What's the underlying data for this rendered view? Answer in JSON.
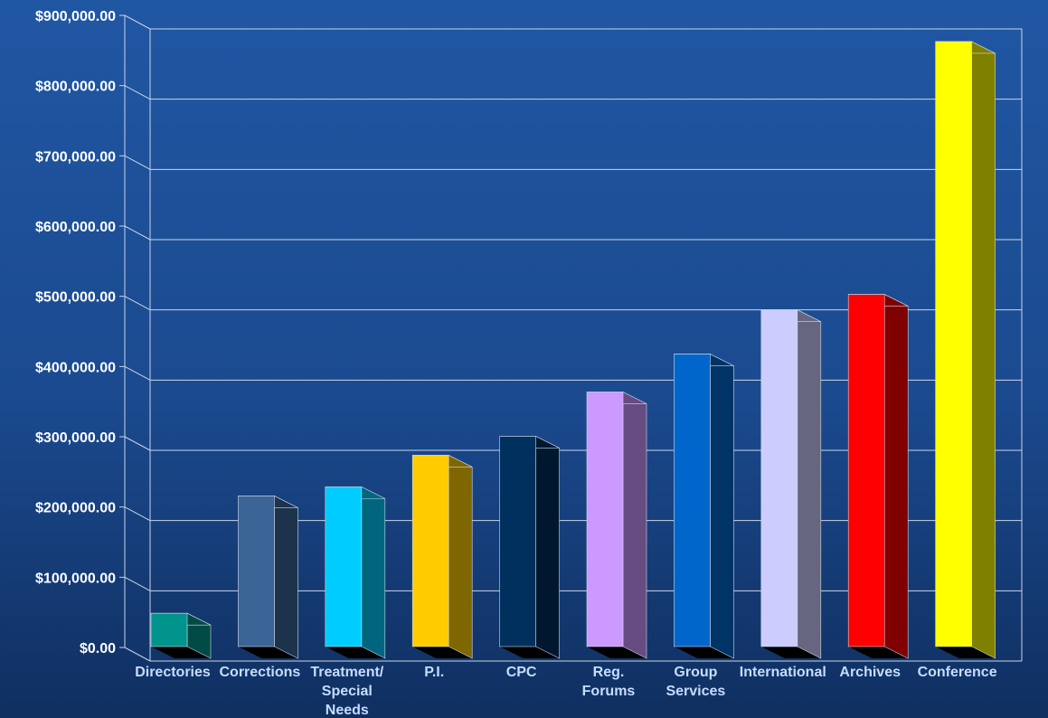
{
  "chart_data": {
    "type": "bar",
    "title": "",
    "xlabel": "",
    "ylabel": "",
    "ylim": [
      0,
      900000
    ],
    "yticks": [
      {
        "value": 0,
        "label": "$0.00"
      },
      {
        "value": 100000,
        "label": "$100,000.00"
      },
      {
        "value": 200000,
        "label": "$200,000.00"
      },
      {
        "value": 300000,
        "label": "$300,000.00"
      },
      {
        "value": 400000,
        "label": "$400,000.00"
      },
      {
        "value": 500000,
        "label": "$500,000.00"
      },
      {
        "value": 600000,
        "label": "$600,000.00"
      },
      {
        "value": 700000,
        "label": "$700,000.00"
      },
      {
        "value": 800000,
        "label": "$800,000.00"
      },
      {
        "value": 900000,
        "label": "$900,000.00"
      }
    ],
    "grid": true,
    "legend": "none",
    "categories": [
      [
        "Directories"
      ],
      [
        "Corrections"
      ],
      [
        "Treatment/",
        "Special",
        "Needs"
      ],
      [
        "P.I."
      ],
      [
        "CPC"
      ],
      [
        "Reg.",
        "Forums"
      ],
      [
        "Group",
        "Services"
      ],
      [
        "International"
      ],
      [
        "Archives"
      ],
      [
        "Conference"
      ]
    ],
    "values": [
      68000,
      235000,
      248000,
      293000,
      320000,
      383000,
      437000,
      500000,
      522000,
      882000
    ],
    "colors": [
      {
        "front": "#00948c",
        "side": "#004a46"
      },
      {
        "front": "#3a6596",
        "side": "#1d334b"
      },
      {
        "front": "#00ccff",
        "side": "#006680"
      },
      {
        "front": "#ffcc00",
        "side": "#806600"
      },
      {
        "front": "#00305e",
        "side": "#00182f"
      },
      {
        "front": "#cc99ff",
        "side": "#664c80"
      },
      {
        "front": "#0066cc",
        "side": "#003366"
      },
      {
        "front": "#ccccff",
        "side": "#666680"
      },
      {
        "front": "#ff0000",
        "side": "#800000"
      },
      {
        "front": "#ffff00",
        "side": "#808000"
      }
    ]
  }
}
